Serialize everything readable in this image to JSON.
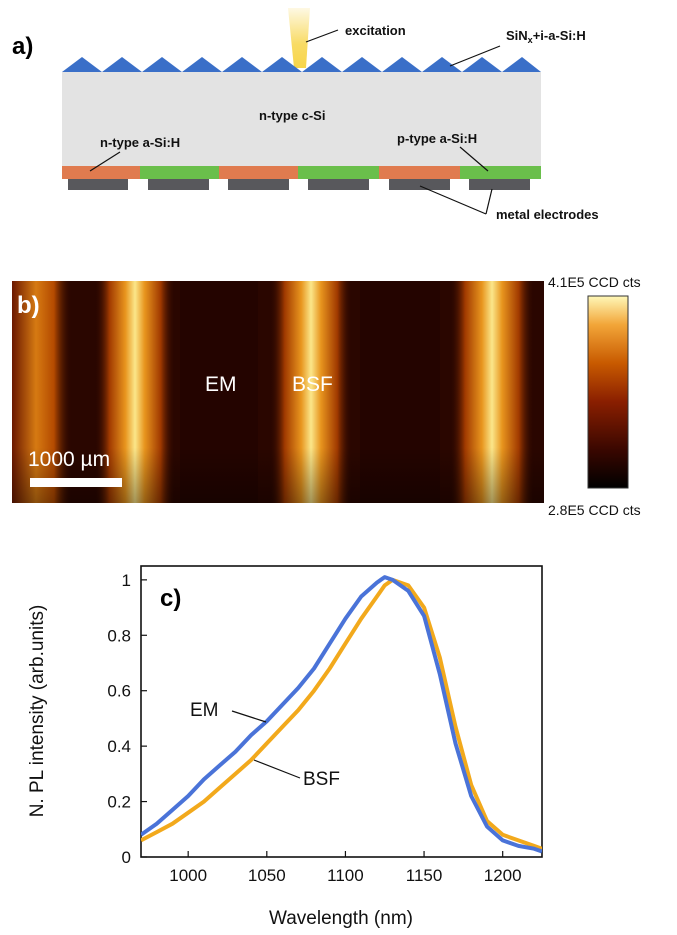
{
  "panel_a": {
    "label": "a)",
    "excitation": "excitation",
    "passivation": "SiNx+i-a-Si:H",
    "passivation_main": "SiN",
    "passivation_sub": "x",
    "passivation_rest": "+i-a-Si:H",
    "bulk": "n-type c-Si",
    "emitter": "n-type a-Si:H",
    "bsf": "p-type a-Si:H",
    "electrodes": "metal electrodes",
    "colors": {
      "pyramid": "#3a6fc8",
      "bulk": "#e3e3e3",
      "n_layer": "#e07b4f",
      "p_layer": "#6abf4b",
      "electrode": "#58585c",
      "beam": "#f7d54a"
    }
  },
  "panel_b": {
    "label": "b)",
    "em_label": "EM",
    "bsf_label": "BSF",
    "scale_bar": "1000 µm",
    "colorbar_max": "4.1E5 CCD cts",
    "colorbar_min": "2.8E5 CCD cts",
    "colormap": [
      "#000000",
      "#3a0700",
      "#8a1f00",
      "#c85a00",
      "#f2a538",
      "#fff8b8"
    ]
  },
  "panel_c": {
    "label": "c)",
    "em_label": "EM",
    "bsf_label": "BSF"
  },
  "chart_data": {
    "type": "line",
    "xlabel": "Wavelength (nm)",
    "ylabel": "N. PL intensity (arb.units)",
    "xlim": [
      970,
      1225
    ],
    "ylim": [
      0,
      1.05
    ],
    "xticks": [
      1000,
      1050,
      1100,
      1150,
      1200
    ],
    "yticks": [
      0,
      0.2,
      0.4,
      0.6,
      0.8,
      1
    ],
    "ytick_labels": [
      "0",
      "0.2",
      "0.4",
      "0.6",
      "0.8",
      "1"
    ],
    "x": [
      970,
      980,
      990,
      1000,
      1010,
      1020,
      1030,
      1040,
      1050,
      1060,
      1070,
      1080,
      1090,
      1100,
      1110,
      1120,
      1125,
      1130,
      1140,
      1150,
      1160,
      1170,
      1180,
      1190,
      1200,
      1210,
      1220,
      1225
    ],
    "series": [
      {
        "name": "EM",
        "color": "#4a73d8",
        "values": [
          0.08,
          0.12,
          0.17,
          0.22,
          0.28,
          0.33,
          0.38,
          0.44,
          0.49,
          0.55,
          0.61,
          0.68,
          0.77,
          0.86,
          0.94,
          0.99,
          1.01,
          1.0,
          0.96,
          0.87,
          0.66,
          0.41,
          0.22,
          0.11,
          0.06,
          0.04,
          0.03,
          0.02
        ]
      },
      {
        "name": "BSF",
        "color": "#f2a91c",
        "values": [
          0.06,
          0.09,
          0.12,
          0.16,
          0.2,
          0.25,
          0.3,
          0.35,
          0.41,
          0.47,
          0.53,
          0.6,
          0.68,
          0.77,
          0.86,
          0.94,
          0.98,
          1.0,
          0.98,
          0.9,
          0.72,
          0.47,
          0.26,
          0.13,
          0.08,
          0.06,
          0.04,
          0.03
        ]
      }
    ]
  }
}
